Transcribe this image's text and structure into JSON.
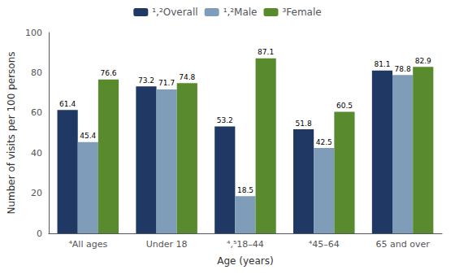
{
  "chart_data": {
    "type": "bar",
    "xlabel": "Age (years)",
    "ylabel": "Number of visits per 100 persons",
    "categories": [
      "⁴All ages",
      "Under 18",
      "⁴,⁵18–44",
      "⁴45–64",
      "65 and over"
    ],
    "series": [
      {
        "name": "¹,²Overall",
        "color": "#1f3864",
        "values": [
          61.4,
          73.2,
          53.2,
          51.8,
          81.1
        ]
      },
      {
        "name": "¹,²Male",
        "color": "#7f9db9",
        "values": [
          45.4,
          71.7,
          18.5,
          42.5,
          78.8
        ]
      },
      {
        "name": "³Female",
        "color": "#5a8a2e",
        "values": [
          76.6,
          74.8,
          87.1,
          60.5,
          82.9
        ]
      }
    ],
    "ylim": [
      0,
      100
    ],
    "yticks": [
      0,
      20,
      40,
      60,
      80,
      100
    ],
    "grid": false,
    "legend": "top",
    "data_labels": true
  }
}
